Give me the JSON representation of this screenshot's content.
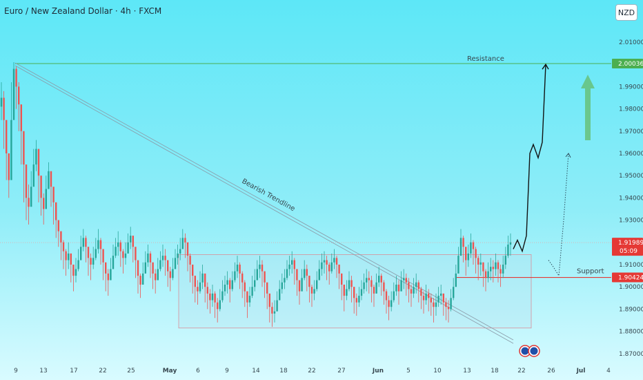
{
  "header": {
    "title": "Euro / New Zealand Dollar · 4h · FXCM",
    "currency": "NZD"
  },
  "chart_data": {
    "type": "candlestick",
    "title": "Euro / New Zealand Dollar · 4h · FXCM",
    "ylim": [
      1.865,
      2.018
    ],
    "y_ticks": [
      "2.01000",
      "2.00000",
      "1.99000",
      "1.98000",
      "1.97000",
      "1.96000",
      "1.95000",
      "1.94000",
      "1.93000",
      "1.92000",
      "1.91000",
      "1.90000",
      "1.89000",
      "1.88000",
      "1.87000"
    ],
    "x_ticks": [
      "9",
      "13",
      "17",
      "22",
      "25",
      "May",
      "6",
      "9",
      "14",
      "18",
      "22",
      "27",
      "Jun",
      "5",
      "10",
      "13",
      "18",
      "22",
      "26",
      "Jul",
      "4"
    ],
    "price_tags": [
      {
        "name": "resistance",
        "value": 2.00036,
        "label": "2.00036",
        "color": "#4caf50"
      },
      {
        "name": "current",
        "value": 1.91989,
        "label": "1.91989",
        "sublabel": "05:09",
        "color": "#e53935"
      },
      {
        "name": "support",
        "value": 1.90424,
        "label": "1.90424",
        "color": "#e53935"
      }
    ],
    "annotations": {
      "resistance_label": "Resistance",
      "support_label": "Support",
      "trendline_label": "Bearish Trendline"
    },
    "colors": {
      "up": "#26a69a",
      "down": "#ef5350",
      "resistance": "#4caf50",
      "support": "#e53935",
      "trendline": "#8a9aa8",
      "projection": "#111111",
      "arrow": "#66bb6a"
    },
    "close_series": [
      1.985,
      1.975,
      1.96,
      1.948,
      1.975,
      1.998,
      1.99,
      1.982,
      1.97,
      1.955,
      1.94,
      1.936,
      1.945,
      1.955,
      1.962,
      1.95,
      1.94,
      1.935,
      1.944,
      1.952,
      1.945,
      1.938,
      1.93,
      1.925,
      1.92,
      1.916,
      1.912,
      1.915,
      1.91,
      1.905,
      1.908,
      1.912,
      1.918,
      1.922,
      1.918,
      1.913,
      1.91,
      1.913,
      1.917,
      1.921,
      1.917,
      1.911,
      1.906,
      1.903,
      1.908,
      1.914,
      1.918,
      1.92,
      1.916,
      1.913,
      1.915,
      1.92,
      1.923,
      1.918,
      1.912,
      1.905,
      1.901,
      1.906,
      1.911,
      1.915,
      1.911,
      1.906,
      1.903,
      1.908,
      1.912,
      1.914,
      1.912,
      1.907,
      1.904,
      1.908,
      1.913,
      1.915,
      1.917,
      1.922,
      1.92,
      1.914,
      1.91,
      1.905,
      1.9,
      1.898,
      1.902,
      1.906,
      1.9,
      1.897,
      1.894,
      1.897,
      1.893,
      1.89,
      1.894,
      1.898,
      1.901,
      1.903,
      1.899,
      1.903,
      1.907,
      1.91,
      1.906,
      1.902,
      1.898,
      1.893,
      1.896,
      1.9,
      1.903,
      1.908,
      1.91,
      1.907,
      1.902,
      1.897,
      1.891,
      1.888,
      1.889,
      1.894,
      1.899,
      1.902,
      1.904,
      1.908,
      1.91,
      1.912,
      1.908,
      1.903,
      1.898,
      1.904,
      1.908,
      1.905,
      1.9,
      1.897,
      1.899,
      1.903,
      1.908,
      1.911,
      1.912,
      1.91,
      1.907,
      1.911,
      1.913,
      1.91,
      1.906,
      1.901,
      1.896,
      1.899,
      1.903,
      1.9,
      1.895,
      1.893,
      1.896,
      1.899,
      1.902,
      1.904,
      1.903,
      1.9,
      1.897,
      1.902,
      1.905,
      1.902,
      1.898,
      1.894,
      1.891,
      1.894,
      1.898,
      1.901,
      1.898,
      1.903,
      1.904,
      1.902,
      1.899,
      1.897,
      1.9,
      1.902,
      1.899,
      1.896,
      1.894,
      1.897,
      1.895,
      1.893,
      1.891,
      1.893,
      1.896,
      1.897,
      1.893,
      1.891,
      1.89,
      1.895,
      1.9,
      1.906,
      1.914,
      1.922,
      1.918,
      1.912,
      1.915,
      1.92,
      1.917,
      1.913,
      1.91,
      1.911,
      1.907,
      1.904,
      1.907,
      1.909,
      1.908,
      1.911,
      1.908,
      1.906,
      1.91,
      1.914,
      1.919,
      1.92
    ],
    "high_series": [
      1.992,
      1.988,
      1.972,
      1.96,
      1.992,
      2.001,
      1.999,
      1.992,
      1.982,
      1.965,
      1.95,
      1.946,
      1.952,
      1.962,
      1.966,
      1.956,
      1.947,
      1.942,
      1.95,
      1.956,
      1.95,
      1.944,
      1.936,
      1.93,
      1.925,
      1.921,
      1.917,
      1.92,
      1.915,
      1.91,
      1.913,
      1.917,
      1.923,
      1.926,
      1.923,
      1.918,
      1.915,
      1.918,
      1.922,
      1.926,
      1.922,
      1.916,
      1.911,
      1.908,
      1.913,
      1.919,
      1.922,
      1.925,
      1.921,
      1.917,
      1.92,
      1.924,
      1.927,
      1.923,
      1.917,
      1.91,
      1.906,
      1.911,
      1.916,
      1.919,
      1.916,
      1.911,
      1.908,
      1.913,
      1.916,
      1.919,
      1.917,
      1.912,
      1.909,
      1.913,
      1.917,
      1.919,
      1.922,
      1.926,
      1.924,
      1.919,
      1.915,
      1.91,
      1.905,
      1.903,
      1.907,
      1.91,
      1.905,
      1.902,
      1.899,
      1.901,
      1.898,
      1.895,
      1.899,
      1.903,
      1.905,
      1.907,
      1.904,
      1.907,
      1.911,
      1.914,
      1.911,
      1.907,
      1.903,
      1.898,
      1.9,
      1.905,
      1.908,
      1.912,
      1.914,
      1.912,
      1.907,
      1.902,
      1.896,
      1.893,
      1.894,
      1.898,
      1.903,
      1.906,
      1.908,
      1.912,
      1.914,
      1.916,
      1.913,
      1.908,
      1.903,
      1.908,
      1.912,
      1.91,
      1.905,
      1.901,
      1.903,
      1.907,
      1.912,
      1.915,
      1.916,
      1.914,
      1.911,
      1.915,
      1.917,
      1.914,
      1.91,
      1.906,
      1.901,
      1.903,
      1.907,
      1.905,
      1.9,
      1.897,
      1.9,
      1.903,
      1.906,
      1.908,
      1.907,
      1.905,
      1.901,
      1.906,
      1.909,
      1.906,
      1.903,
      1.899,
      1.896,
      1.898,
      1.902,
      1.905,
      1.903,
      1.907,
      1.908,
      1.906,
      1.904,
      1.901,
      1.904,
      1.906,
      1.903,
      1.9,
      1.898,
      1.901,
      1.899,
      1.897,
      1.895,
      1.897,
      1.9,
      1.901,
      1.897,
      1.895,
      1.894,
      1.899,
      1.904,
      1.91,
      1.918,
      1.926,
      1.923,
      1.916,
      1.919,
      1.924,
      1.921,
      1.918,
      1.914,
      1.915,
      1.911,
      1.908,
      1.911,
      1.913,
      1.912,
      1.915,
      1.912,
      1.91,
      1.914,
      1.918,
      1.923,
      1.924
    ],
    "low_series": [
      1.975,
      1.962,
      1.948,
      1.94,
      1.965,
      1.985,
      1.98,
      1.97,
      1.955,
      1.938,
      1.93,
      1.928,
      1.938,
      1.948,
      1.952,
      1.938,
      1.932,
      1.928,
      1.938,
      1.944,
      1.936,
      1.928,
      1.922,
      1.918,
      1.912,
      1.908,
      1.905,
      1.908,
      1.902,
      1.898,
      1.902,
      1.907,
      1.912,
      1.916,
      1.911,
      1.905,
      1.903,
      1.908,
      1.912,
      1.915,
      1.91,
      1.903,
      1.898,
      1.896,
      1.903,
      1.909,
      1.913,
      1.914,
      1.909,
      1.906,
      1.91,
      1.915,
      1.917,
      1.911,
      1.904,
      1.897,
      1.895,
      1.901,
      1.906,
      1.909,
      1.904,
      1.899,
      1.897,
      1.903,
      1.907,
      1.909,
      1.905,
      1.9,
      1.898,
      1.903,
      1.908,
      1.91,
      1.912,
      1.917,
      1.913,
      1.907,
      1.902,
      1.897,
      1.893,
      1.892,
      1.897,
      1.899,
      1.893,
      1.89,
      1.888,
      1.891,
      1.886,
      1.884,
      1.889,
      1.893,
      1.896,
      1.897,
      1.893,
      1.898,
      1.902,
      1.904,
      1.899,
      1.895,
      1.891,
      1.886,
      1.891,
      1.895,
      1.898,
      1.903,
      1.904,
      1.9,
      1.895,
      1.89,
      1.884,
      1.882,
      1.884,
      1.889,
      1.894,
      1.897,
      1.899,
      1.903,
      1.905,
      1.906,
      1.901,
      1.896,
      1.892,
      1.899,
      1.903,
      1.898,
      1.893,
      1.891,
      1.894,
      1.898,
      1.903,
      1.905,
      1.906,
      1.903,
      1.901,
      1.906,
      1.908,
      1.904,
      1.899,
      1.894,
      1.889,
      1.894,
      1.898,
      1.893,
      1.888,
      1.887,
      1.891,
      1.894,
      1.897,
      1.898,
      1.897,
      1.893,
      1.891,
      1.897,
      1.9,
      1.896,
      1.892,
      1.888,
      1.885,
      1.889,
      1.893,
      1.896,
      1.892,
      1.898,
      1.899,
      1.896,
      1.893,
      1.891,
      1.895,
      1.897,
      1.893,
      1.89,
      1.888,
      1.892,
      1.889,
      1.887,
      1.884,
      1.887,
      1.891,
      1.892,
      1.887,
      1.885,
      1.884,
      1.889,
      1.894,
      1.9,
      1.908,
      1.914,
      1.911,
      1.905,
      1.909,
      1.913,
      1.91,
      1.906,
      1.903,
      1.905,
      1.9,
      1.898,
      1.902,
      1.903,
      1.902,
      1.905,
      1.902,
      1.9,
      1.904,
      1.908,
      1.913,
      1.914
    ],
    "projection_path": [
      [
        1.915,
        1.917
      ],
      [
        1.921,
        1.923
      ],
      [
        1.916,
        1.96
      ],
      [
        1.96,
        1.961
      ],
      [
        1.958,
        1.963
      ],
      [
        1.96,
        2.0
      ]
    ],
    "projection_dotted_path": [
      [
        1.908,
        1.91
      ],
      [
        1.905,
        1.903
      ],
      [
        1.96
      ]
    ]
  }
}
